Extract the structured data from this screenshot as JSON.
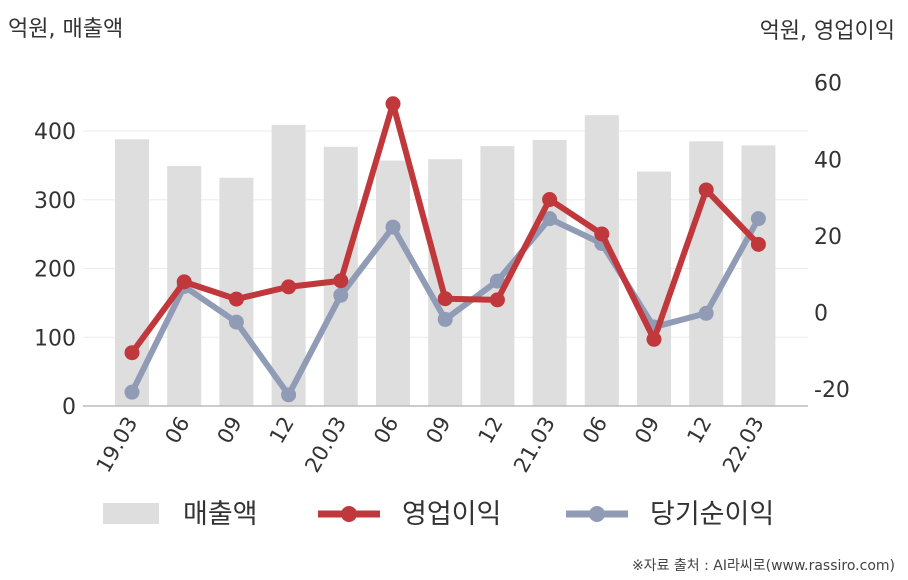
{
  "left_unit_label": "억원, 매출액",
  "right_unit_label": "억원, 영업이익",
  "source": "※자료 출처 : AI라씨로(www.rassiro.com)",
  "chart_data": {
    "type": "bar+line",
    "categories": [
      "19.03",
      "06",
      "09",
      "12",
      "20.03",
      "06",
      "09",
      "12",
      "21.03",
      "06",
      "09",
      "12",
      "22.03"
    ],
    "left_axis": {
      "ylim": [
        0,
        450
      ],
      "ticks": [
        0,
        100,
        200,
        300,
        400
      ]
    },
    "right_axis": {
      "ylim": [
        -25,
        63
      ],
      "ticks": [
        -20,
        0,
        20,
        40,
        60
      ]
    },
    "grid": true,
    "legend_position": "bottom",
    "series": [
      {
        "name": "매출액",
        "type": "bar",
        "axis": "left",
        "color": "#dedede",
        "values": [
          388,
          349,
          332,
          409,
          377,
          357,
          359,
          378,
          387,
          423,
          341,
          385,
          379
        ]
      },
      {
        "name": "영업이익",
        "type": "line",
        "axis": "right",
        "color": "#c0383b",
        "values": [
          -10.5,
          8,
          3.5,
          6.7,
          8.3,
          54.5,
          3.6,
          3.3,
          29.5,
          20.5,
          -7,
          32,
          17.8
        ]
      },
      {
        "name": "당기순이익",
        "type": "line",
        "axis": "right",
        "color": "#909bb5",
        "values": [
          -20.8,
          6.8,
          -2.5,
          -21.5,
          4.5,
          22.3,
          -1.8,
          8.2,
          24.5,
          18,
          -3.8,
          -0.2,
          24.5
        ]
      }
    ]
  }
}
